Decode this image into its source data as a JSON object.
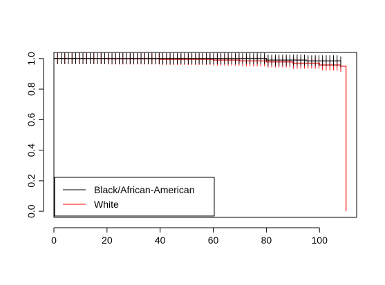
{
  "chart_data": {
    "type": "line",
    "title": "",
    "xlabel": "",
    "ylabel": "",
    "xlim": [
      0,
      114
    ],
    "ylim": [
      -0.04,
      1.04
    ],
    "x_ticks": [
      0,
      20,
      40,
      60,
      80,
      100
    ],
    "y_ticks": [
      0.0,
      0.2,
      0.4,
      0.6,
      0.8,
      1.0
    ],
    "x_tick_labels": [
      "0",
      "20",
      "40",
      "60",
      "80",
      "100"
    ],
    "y_tick_labels": [
      "0.0",
      "0.2",
      "0.4",
      "0.6",
      "0.8",
      "1.0"
    ],
    "grid": false,
    "legend_position": "bottom-left",
    "series": [
      {
        "name": "Black/African-American",
        "color": "#000000",
        "step": [
          [
            0,
            1.0
          ],
          [
            60,
            1.0
          ],
          [
            80,
            0.99
          ],
          [
            95,
            0.985
          ],
          [
            108,
            0.978
          ]
        ],
        "censor_range": [
          0,
          108
        ],
        "censor_count": 80
      },
      {
        "name": "White",
        "color": "#ff0000",
        "step": [
          [
            0,
            1.0
          ],
          [
            20,
            0.998
          ],
          [
            40,
            0.995
          ],
          [
            60,
            0.99
          ],
          [
            70,
            0.985
          ],
          [
            80,
            0.978
          ],
          [
            90,
            0.97
          ],
          [
            100,
            0.958
          ],
          [
            108,
            0.95
          ],
          [
            110,
            0.95
          ],
          [
            110,
            0.0
          ]
        ],
        "censor_range": [
          0,
          108
        ],
        "censor_count": 80
      }
    ]
  }
}
